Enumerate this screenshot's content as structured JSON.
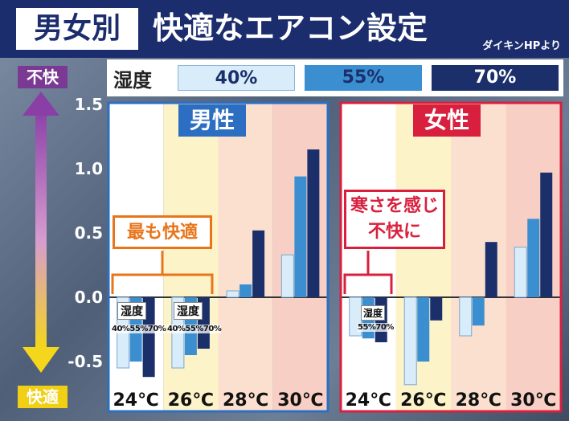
{
  "header": {
    "tag": "男女別",
    "title": "快適なエアコン設定",
    "source": "ダイキンHPより"
  },
  "legend": {
    "label": "湿度",
    "items": [
      {
        "label": "40%",
        "color": "#d9ecf9"
      },
      {
        "label": "55%",
        "color": "#3b8fd0"
      },
      {
        "label": "70%",
        "color": "#1b2f6b"
      }
    ]
  },
  "axis_words": {
    "top": "不快",
    "bottom": "快適"
  },
  "annotations": {
    "male": "最も快適",
    "female_line1": "寒さを感じ",
    "female_line2": "不快に",
    "mini_title": "湿度",
    "mini_vals_3": "40%55%70%",
    "mini_vals_2": "55%70%"
  },
  "chart_data": {
    "type": "bar",
    "ylim": [
      -0.6,
      1.5
    ],
    "yticks": [
      "1.5",
      "1.0",
      "0.5",
      "0.0",
      "-0.5"
    ],
    "ytick_values": [
      1.5,
      1.0,
      0.5,
      0.0,
      -0.5
    ],
    "categories": [
      "24℃",
      "26℃",
      "28℃",
      "30℃"
    ],
    "panels": [
      {
        "label": "男性",
        "color": "#2c6fc2",
        "series": [
          {
            "name": "40%",
            "values": [
              -0.55,
              -0.55,
              0.05,
              0.33
            ]
          },
          {
            "name": "55%",
            "values": [
              -0.5,
              -0.45,
              0.1,
              0.94
            ]
          },
          {
            "name": "70%",
            "values": [
              -0.62,
              -0.4,
              0.52,
              1.15
            ]
          }
        ]
      },
      {
        "label": "女性",
        "color": "#d8203e",
        "series": [
          {
            "name": "40%",
            "values": [
              -0.3,
              -0.68,
              -0.3,
              0.39
            ]
          },
          {
            "name": "55%",
            "values": [
              -0.32,
              -0.5,
              -0.22,
              0.61
            ]
          },
          {
            "name": "70%",
            "values": [
              -0.35,
              -0.18,
              0.43,
              0.97
            ]
          }
        ]
      }
    ]
  }
}
